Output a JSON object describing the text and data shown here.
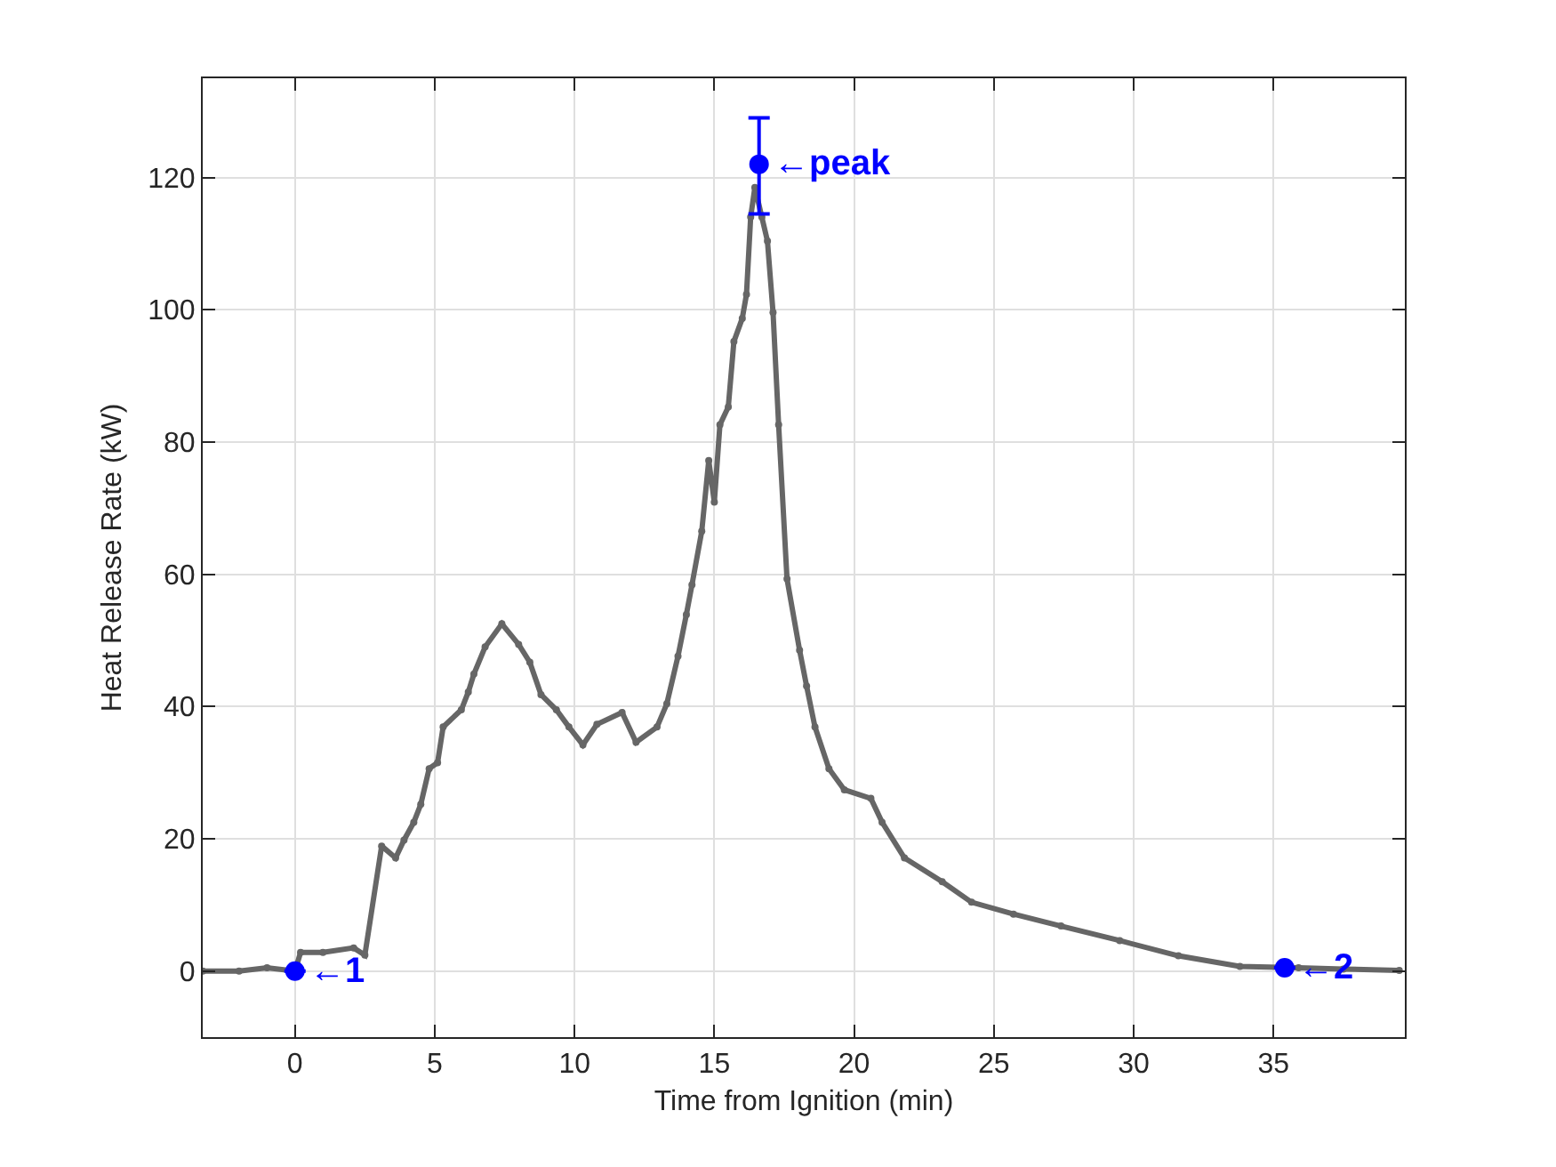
{
  "chart_data": {
    "type": "line",
    "xlabel": "Time from Ignition (min)",
    "ylabel": "Heat Release Rate (kW)",
    "xlim": [
      -3.3,
      39.7
    ],
    "ylim": [
      -10,
      135
    ],
    "xticks": [
      0,
      5,
      10,
      15,
      20,
      25,
      30,
      35
    ],
    "yticks": [
      0,
      20,
      40,
      60,
      80,
      100,
      120
    ],
    "grid": true,
    "series": [
      {
        "color": "#666666",
        "marker": "circle",
        "line_style": "solid",
        "x": [
          -3.3,
          -2,
          -1,
          0,
          0.2,
          1,
          2.1,
          2.5,
          3.1,
          3.6,
          3.9,
          4.25,
          4.5,
          4.8,
          5.1,
          5.3,
          5.95,
          6.2,
          6.4,
          6.8,
          7.4,
          8.0,
          8.4,
          8.8,
          9.35,
          9.8,
          10.3,
          10.8,
          11.7,
          12.2,
          12.95,
          13.3,
          13.7,
          14.0,
          14.2,
          14.55,
          14.8,
          15.0,
          15.2,
          15.5,
          15.7,
          16.0,
          16.15,
          16.3,
          16.45,
          16.7,
          16.9,
          17.1,
          17.3,
          17.6,
          18.05,
          18.3,
          18.6,
          19.1,
          19.65,
          20.6,
          21.0,
          21.8,
          23.15,
          24.2,
          25.7,
          27.4,
          29.5,
          31.6,
          33.8,
          35.9,
          37.5,
          39.5
        ],
        "values": [
          0,
          0,
          0.5,
          0,
          2.8,
          2.8,
          3.5,
          2.4,
          18.9,
          17.1,
          19.8,
          22.5,
          25.2,
          30.6,
          31.5,
          36.9,
          39.5,
          42.2,
          44.9,
          49,
          52.5,
          49.4,
          46.7,
          41.8,
          39.5,
          36.9,
          34.2,
          37.3,
          39.1,
          34.6,
          36.9,
          40.4,
          47.6,
          53.9,
          58.4,
          66.5,
          77.2,
          70.9,
          82.6,
          85.3,
          95.2,
          98.7,
          102.3,
          114,
          118.5,
          114,
          110.4,
          99.6,
          82.6,
          59.3,
          48.5,
          43.1,
          36.9,
          30.6,
          27.4,
          26.1,
          22.5,
          17.1,
          13.5,
          10.4,
          8.6,
          6.8,
          4.6,
          2.3,
          0.7,
          0.5,
          0.3,
          0.1
        ]
      },
      {
        "type": "scatter",
        "color": "#0000ff",
        "marker": "circle",
        "x": [
          0,
          16.6,
          35.4
        ],
        "values": [
          0,
          122,
          0.5
        ],
        "errors": [
          null,
          [
            114.5,
            129
          ],
          null
        ]
      }
    ],
    "annotations": [
      {
        "text": "←1",
        "x": 0,
        "y": 0
      },
      {
        "text": "←peak",
        "x": 16.6,
        "y": 122
      },
      {
        "text": "←2",
        "x": 35.4,
        "y": 0.5
      }
    ]
  }
}
